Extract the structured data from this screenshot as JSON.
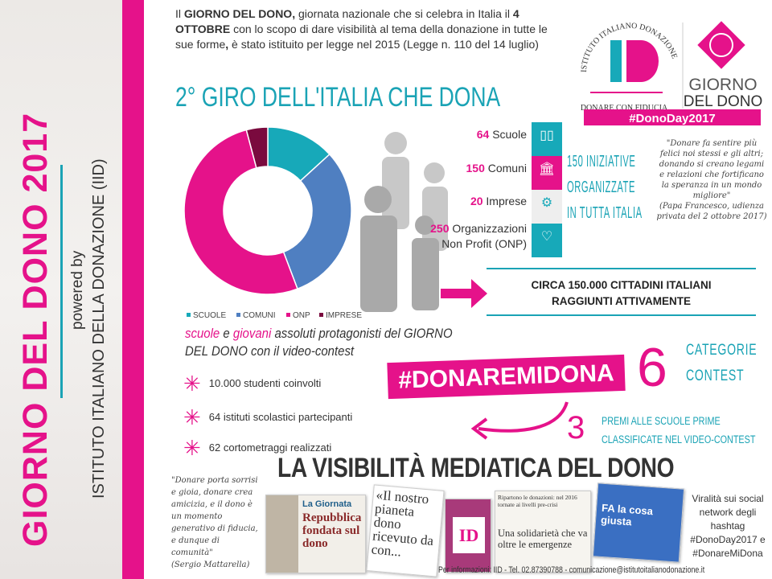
{
  "sidebar": {
    "title": "GIORNO DEL DONO 2017",
    "powered_by": "powered by",
    "institute": "ISTITUTO ITALIANO DELLA DONAZIONE (IID)"
  },
  "intro": {
    "p1": "Il ",
    "b1": "GIORNO DEL DONO,",
    "p2": " giornata nazionale che si celebra in Italia il ",
    "b2": "4 OTTOBRE",
    "p3": " con lo scopo di dare visibilità al tema della donazione in tutte le sue forme",
    "b3": ",",
    "p4": " è stato istituito per legge nel 2015 (Legge n. 110 del 14 luglio)"
  },
  "logo": {
    "arc_text": "ISTITUTO ITALIANO DONAZIONE",
    "mark": "ID",
    "tagline": "DONARE CON FIDUCIA",
    "giorno1": "GIORNO",
    "giorno2": "DEL DONO",
    "hashtag": "#DonoDay2017"
  },
  "giro_title": "2° GIRO DELL'ITALIA CHE DONA",
  "chart_data": {
    "type": "pie",
    "donut": true,
    "categories": [
      "SCUOLE",
      "COMUNI",
      "ONP",
      "IMPRESE"
    ],
    "values": [
      64,
      150,
      250,
      20
    ],
    "colors": [
      "#17a9b9",
      "#4f7fc1",
      "#e5128a",
      "#7a0a3e"
    ],
    "legend": "bottom"
  },
  "stats": [
    {
      "num": "64",
      "label": "Scuole",
      "icon": "book-icon",
      "color": "#17a9b9",
      "sub": "SCUOLE"
    },
    {
      "num": "150",
      "label": "Comuni",
      "icon": "building-icon",
      "color": "#e5128a",
      "sub": "COMUNI"
    },
    {
      "num": "20",
      "label": "Imprese",
      "icon": "gears-icon",
      "color": "#eeeeee",
      "sub": "IMPRESE"
    },
    {
      "num": "250",
      "label": "Organizzazioni",
      "label2": "Non Profit (ONP)",
      "icon": "heart-icon",
      "color": "#17a9b9",
      "sub": "NON PROFIT"
    }
  ],
  "iniziative": [
    "150 INIZIATIVE",
    "ORGANIZZATE",
    "IN TUTTA ITALIA"
  ],
  "papa_quote": "\"Donare fa sentire più felici noi stessi e gli altri; donando si creano legami e relazioni che fortificano la speranza in un mondo migliore\"",
  "papa_source": "(Papa Francesco, udienza privata del 2 ottobre 2017)",
  "circa": [
    "CIRCA 150.000 CITTADINI ITALIANI",
    "RAGGIUNTI ATTIVAMENTE"
  ],
  "scuole_line": {
    "a": "scuole",
    "b": " e ",
    "c": "giovani",
    "d": " assoluti protagonisti del GIORNO DEL DONO con il video-contest"
  },
  "bullets": [
    "10.000 studenti coinvolti",
    "64 istituti scolastici partecipanti",
    "62 cortometraggi realizzati"
  ],
  "hashtag": "#DONAREMIDONA",
  "six": "6",
  "categorie": [
    "CATEGORIE",
    "CONTEST"
  ],
  "three": "3",
  "premi": [
    "PREMI ALLE SCUOLE PRIME",
    "CLASSIFICATE NEL VIDEO-CONTEST"
  ],
  "visibilita": "LA VISIBILITÀ MEDIATICA DEL DONO",
  "mattarella_quote": "\"Donare porta sorrisi e gioia, donare crea amicizia, e il dono è un momento generativo di fiducia, e dunque di comunità\"",
  "mattarella_source": "(Sergio Mattarella)",
  "clips": {
    "c1_head": "La Giornata",
    "c1_title": "Repubblica fondata sul dono",
    "c2": "«Il nostro pianeta dono ricevuto da con...",
    "c3_head": "Ripartono le donazioni: nel 2016 tornate ai livelli pre-crisi",
    "c3_title": "Una solidarietà che va oltre le emergenze",
    "c4": "FA la cosa giusta"
  },
  "viral": "Viralità sui social network degli hashtag #DonoDay2017 e #DonareMiDona",
  "footer": "Per informazioni: IID - Tel. 02.87390788 - comunicazione@istitutoitalianodonazione.it"
}
